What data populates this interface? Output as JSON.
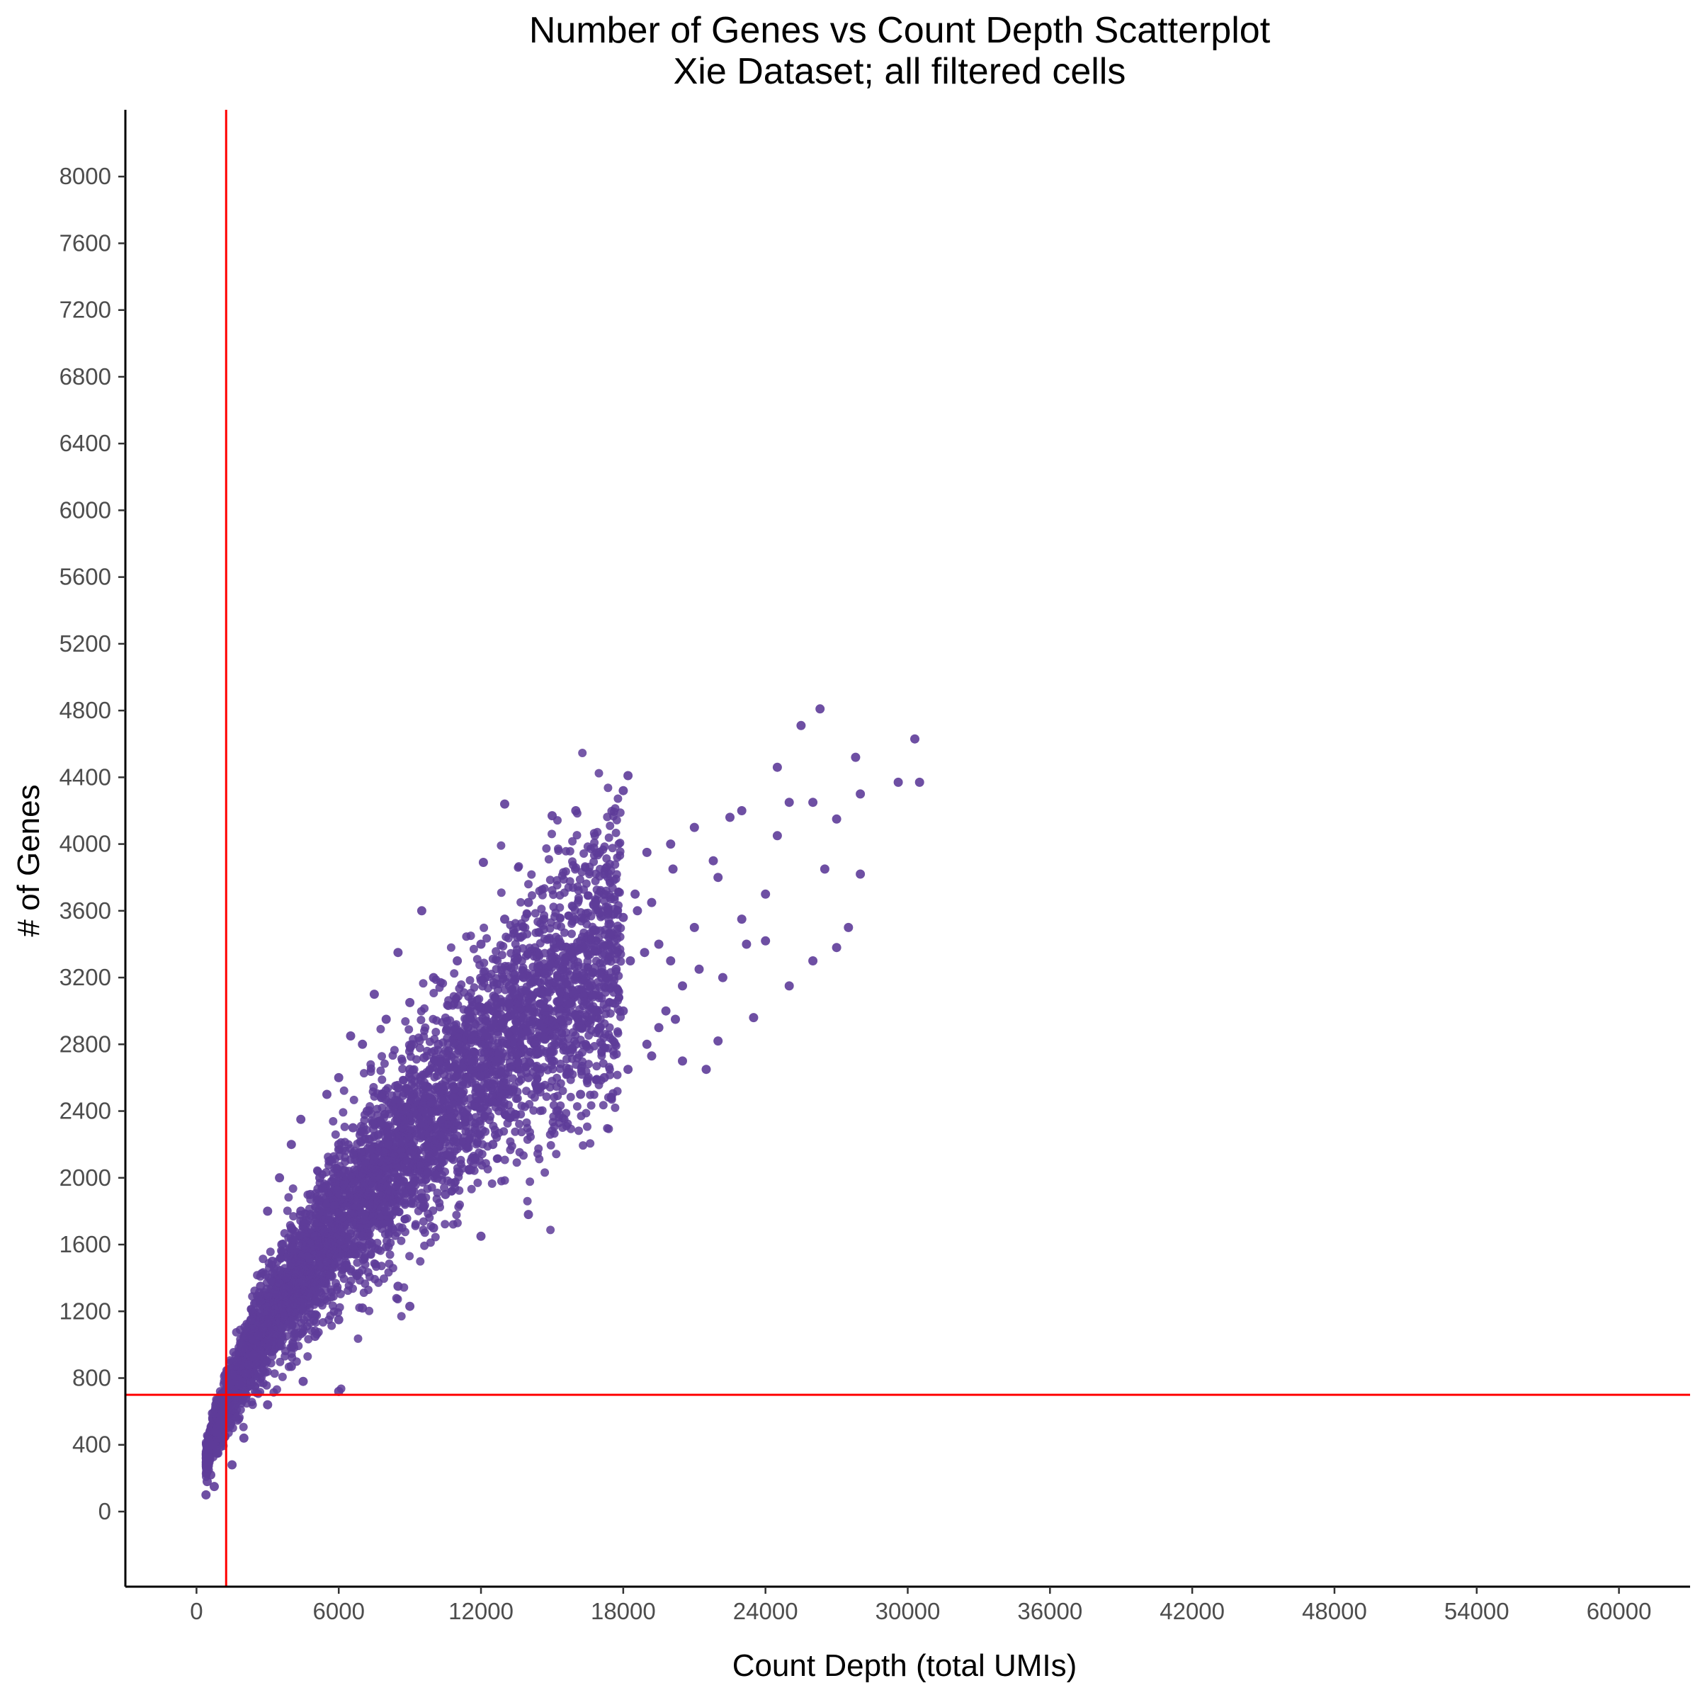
{
  "chart_data": {
    "type": "scatter",
    "title": "Number of Genes vs Count Depth Scatterplot",
    "subtitle": "Xie Dataset; all filtered cells",
    "xlabel": "Count Depth (total UMIs)",
    "ylabel": "# of Genes",
    "xlim": [
      -3000,
      63000
    ],
    "ylim": [
      -450,
      8400
    ],
    "x_ticks": [
      0,
      6000,
      12000,
      18000,
      24000,
      30000,
      36000,
      42000,
      48000,
      54000,
      60000
    ],
    "y_ticks": [
      0,
      400,
      800,
      1200,
      1600,
      2000,
      2400,
      2800,
      3200,
      3600,
      4000,
      4400,
      4800,
      5200,
      5600,
      6000,
      6400,
      6800,
      7200,
      7600,
      8000
    ],
    "grid": false,
    "legend": "none",
    "point_color": "#5e3c99",
    "threshold_color": "#ff0000",
    "thresholds": {
      "x": 1250,
      "y": 700
    },
    "points_note": "dense cloud of cells rising from ~(500,100) to ~(18000,3400); outliers listed below",
    "points": [
      [
        400,
        100
      ],
      [
        450,
        180
      ],
      [
        500,
        250
      ],
      [
        550,
        320
      ],
      [
        600,
        220
      ],
      [
        700,
        400
      ],
      [
        750,
        150
      ],
      [
        800,
        480
      ],
      [
        900,
        350
      ],
      [
        1000,
        520
      ],
      [
        1100,
        600
      ],
      [
        1200,
        450
      ],
      [
        1300,
        700
      ],
      [
        1400,
        560
      ],
      [
        1500,
        820
      ],
      [
        1600,
        640
      ],
      [
        1700,
        900
      ],
      [
        1800,
        760
      ],
      [
        1900,
        980
      ],
      [
        2000,
        700
      ],
      [
        2100,
        1050
      ],
      [
        2200,
        880
      ],
      [
        2300,
        1150
      ],
      [
        2400,
        940
      ],
      [
        2500,
        1250
      ],
      [
        2600,
        1050
      ],
      [
        2700,
        1350
      ],
      [
        2800,
        1100
      ],
      [
        2900,
        1420
      ],
      [
        3000,
        1200
      ],
      [
        3200,
        1500
      ],
      [
        3400,
        1300
      ],
      [
        3600,
        1600
      ],
      [
        3800,
        1400
      ],
      [
        4000,
        1700
      ],
      [
        4200,
        1500
      ],
      [
        4400,
        1800
      ],
      [
        4600,
        1580
      ],
      [
        4800,
        1900
      ],
      [
        5000,
        1650
      ],
      [
        5200,
        2000
      ],
      [
        5400,
        1750
      ],
      [
        5600,
        2100
      ],
      [
        5800,
        1830
      ],
      [
        6000,
        2200
      ],
      [
        6300,
        1900
      ],
      [
        6600,
        2300
      ],
      [
        6900,
        2000
      ],
      [
        7200,
        2400
      ],
      [
        7500,
        2100
      ],
      [
        7800,
        2480
      ],
      [
        8100,
        2200
      ],
      [
        8400,
        2550
      ],
      [
        8700,
        2300
      ],
      [
        9000,
        2650
      ],
      [
        9300,
        2380
      ],
      [
        9600,
        2720
      ],
      [
        9900,
        2450
      ],
      [
        10200,
        2800
      ],
      [
        10500,
        2550
      ],
      [
        10800,
        2880
      ],
      [
        11100,
        2620
      ],
      [
        11400,
        2950
      ],
      [
        11700,
        2700
      ],
      [
        12000,
        3020
      ],
      [
        12300,
        2750
      ],
      [
        12600,
        3080
      ],
      [
        12900,
        2820
      ],
      [
        13200,
        3150
      ],
      [
        13500,
        2880
      ],
      [
        13800,
        3200
      ],
      [
        14100,
        2940
      ],
      [
        14400,
        3260
      ],
      [
        14700,
        3000
      ],
      [
        15000,
        3320
      ],
      [
        15300,
        3060
      ],
      [
        15600,
        3380
      ],
      [
        15900,
        3100
      ],
      [
        16200,
        3420
      ],
      [
        16500,
        3150
      ],
      [
        16800,
        3480
      ],
      [
        17100,
        3200
      ],
      [
        17400,
        3520
      ],
      [
        17700,
        3250
      ],
      [
        18000,
        3560
      ],
      [
        18300,
        3300
      ],
      [
        18600,
        3600
      ],
      [
        18900,
        3350
      ],
      [
        19200,
        3650
      ],
      [
        19500,
        3400
      ],
      [
        5500,
        2500
      ],
      [
        6000,
        2600
      ],
      [
        7000,
        2800
      ],
      [
        8000,
        2950
      ],
      [
        9000,
        3050
      ],
      [
        10000,
        3200
      ],
      [
        11000,
        3300
      ],
      [
        12000,
        3400
      ],
      [
        13000,
        3550
      ],
      [
        14000,
        3650
      ],
      [
        6500,
        2850
      ],
      [
        7500,
        3100
      ],
      [
        8500,
        3350
      ],
      [
        9500,
        3600
      ],
      [
        4500,
        1250
      ],
      [
        5000,
        1350
      ],
      [
        6000,
        1500
      ],
      [
        7000,
        1650
      ],
      [
        8000,
        1800
      ],
      [
        9000,
        1950
      ],
      [
        10000,
        2100
      ],
      [
        11000,
        2250
      ],
      [
        12000,
        2400
      ],
      [
        13000,
        2500
      ],
      [
        14000,
        2600
      ],
      [
        15000,
        2700
      ],
      [
        16000,
        2800
      ],
      [
        17000,
        2900
      ],
      [
        18000,
        3000
      ],
      [
        4000,
        2200
      ],
      [
        4400,
        2350
      ],
      [
        3000,
        1800
      ],
      [
        3500,
        2000
      ],
      [
        9000,
        1230
      ],
      [
        10000,
        1700
      ],
      [
        12000,
        1650
      ],
      [
        14000,
        1780
      ],
      [
        7000,
        1220
      ],
      [
        6000,
        1150
      ],
      [
        3500,
        1010
      ],
      [
        4000,
        870
      ],
      [
        5000,
        1050
      ],
      [
        8500,
        1350
      ],
      [
        9500,
        1880
      ],
      [
        6000,
        720
      ],
      [
        4500,
        780
      ],
      [
        2000,
        440
      ],
      [
        1500,
        280
      ],
      [
        3000,
        640
      ],
      [
        12100,
        3890
      ],
      [
        13000,
        4240
      ],
      [
        15000,
        4170
      ],
      [
        16000,
        4200
      ],
      [
        17000,
        3950
      ],
      [
        18000,
        4320
      ],
      [
        18200,
        4410
      ],
      [
        19000,
        3950
      ],
      [
        20000,
        4000
      ],
      [
        21000,
        4100
      ],
      [
        20000,
        3300
      ],
      [
        21000,
        3500
      ],
      [
        22000,
        3800
      ],
      [
        23000,
        3550
      ],
      [
        24000,
        3700
      ],
      [
        24500,
        4050
      ],
      [
        25000,
        4250
      ],
      [
        26000,
        4250
      ],
      [
        27000,
        4150
      ],
      [
        28000,
        4300
      ],
      [
        20500,
        2700
      ],
      [
        21500,
        2650
      ],
      [
        22000,
        2820
      ],
      [
        23500,
        2960
      ],
      [
        25000,
        3150
      ],
      [
        26000,
        3300
      ],
      [
        27000,
        3380
      ],
      [
        27500,
        3500
      ],
      [
        26500,
        3850
      ],
      [
        24000,
        3420
      ],
      [
        22500,
        4160
      ],
      [
        23000,
        4200
      ],
      [
        24500,
        4460
      ],
      [
        25500,
        4710
      ],
      [
        26300,
        4810
      ],
      [
        27800,
        4520
      ],
      [
        29600,
        4370
      ],
      [
        30300,
        4630
      ],
      [
        30500,
        4370
      ],
      [
        28000,
        3820
      ],
      [
        19200,
        2730
      ],
      [
        19500,
        2900
      ],
      [
        19800,
        3000
      ],
      [
        20500,
        3150
      ],
      [
        21200,
        3250
      ],
      [
        22200,
        3200
      ],
      [
        23200,
        3400
      ],
      [
        18500,
        3700
      ],
      [
        20100,
        3850
      ],
      [
        21800,
        3900
      ],
      [
        15200,
        2400
      ],
      [
        16200,
        2500
      ],
      [
        17200,
        2600
      ],
      [
        17500,
        2480
      ],
      [
        18200,
        2650
      ],
      [
        19000,
        2800
      ],
      [
        20200,
        2950
      ],
      [
        12500,
        2200
      ],
      [
        11500,
        2050
      ],
      [
        10500,
        1900
      ]
    ]
  }
}
